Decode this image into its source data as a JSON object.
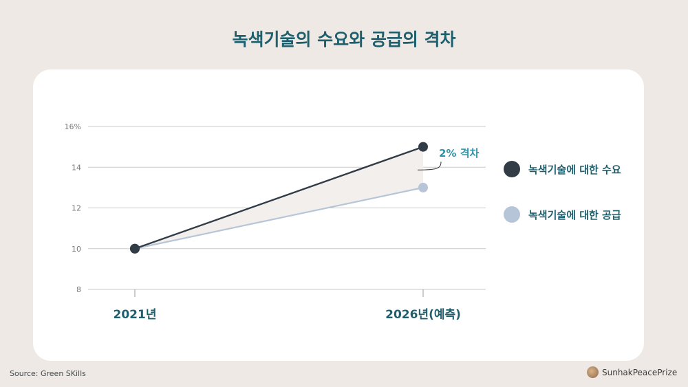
{
  "title": "녹색기술의 수요와 공급의 격차",
  "chart_data": {
    "type": "line",
    "title": "녹색기술의 수요와 공급의 격차",
    "categories": [
      "2021년",
      "2026년(예측)"
    ],
    "series": [
      {
        "name": "녹색기술에 대한 수요",
        "values": [
          10,
          15
        ],
        "color": "#323c46"
      },
      {
        "name": "녹색기술에 대한 공급",
        "values": [
          10,
          13
        ],
        "color": "#b7c5d9"
      }
    ],
    "y_ticks": [
      "16%",
      "14",
      "12",
      "10",
      "8"
    ],
    "y_tick_values": [
      16,
      14,
      12,
      10,
      8
    ],
    "ylim": [
      8,
      16
    ],
    "grid": true,
    "legend_position": "right",
    "gap_fill_color": "#f2efec",
    "annotation": {
      "text": "2% 격차",
      "color": "#2e94a8"
    }
  },
  "footer": {
    "source": "Source: Green SKills",
    "brand": "SunhakPeacePrize"
  }
}
